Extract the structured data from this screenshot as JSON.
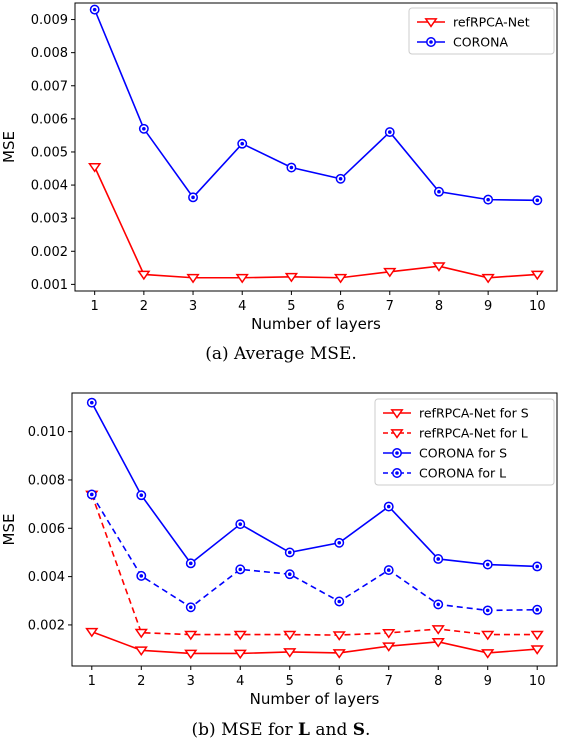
{
  "chart_data": [
    {
      "type": "line",
      "x": [
        1,
        2,
        3,
        4,
        5,
        6,
        7,
        8,
        9,
        10
      ],
      "xlabel": "Number of layers",
      "ylabel": "MSE",
      "xlim": [
        0.6,
        10.4
      ],
      "ylim": [
        0.0008,
        0.0095
      ],
      "yticks": [
        0.001,
        0.002,
        0.003,
        0.004,
        0.005,
        0.006,
        0.007,
        0.008,
        0.009
      ],
      "ytick_labels": [
        "0.001",
        "0.002",
        "0.003",
        "0.004",
        "0.005",
        "0.006",
        "0.007",
        "0.008",
        "0.009"
      ],
      "grid": false,
      "legend_position": "top-right",
      "series": [
        {
          "name": "refRPCA-Net",
          "color": "#ff0000",
          "marker": "triangle-down",
          "dash": "solid",
          "values": [
            0.00455,
            0.0013,
            0.0012,
            0.0012,
            0.00123,
            0.0012,
            0.00138,
            0.00155,
            0.0012,
            0.0013
          ]
        },
        {
          "name": "CORONA",
          "color": "#0000ff",
          "marker": "circle",
          "dash": "solid",
          "values": [
            0.0093,
            0.0057,
            0.00363,
            0.00525,
            0.00453,
            0.00419,
            0.0056,
            0.0038,
            0.00356,
            0.00354
          ]
        }
      ]
    },
    {
      "type": "line",
      "x": [
        1,
        2,
        3,
        4,
        5,
        6,
        7,
        8,
        9,
        10
      ],
      "xlabel": "Number of layers",
      "ylabel": "MSE",
      "xlim": [
        0.6,
        10.4
      ],
      "ylim": [
        0.0003,
        0.0116
      ],
      "yticks": [
        0.002,
        0.004,
        0.006,
        0.008,
        0.01
      ],
      "ytick_labels": [
        "0.002",
        "0.004",
        "0.006",
        "0.008",
        "0.010"
      ],
      "grid": false,
      "legend_position": "top-right",
      "series": [
        {
          "name": "refRPCA-Net for S",
          "color": "#ff0000",
          "marker": "triangle-down",
          "dash": "solid",
          "values": [
            0.00172,
            0.00095,
            0.00082,
            0.00082,
            0.00088,
            0.00084,
            0.00112,
            0.0013,
            0.00084,
            0.001
          ]
        },
        {
          "name": "refRPCA-Net for L",
          "color": "#ff0000",
          "marker": "triangle-down",
          "dash": "dashed",
          "values": [
            0.0074,
            0.00168,
            0.0016,
            0.0016,
            0.0016,
            0.00158,
            0.00167,
            0.00183,
            0.0016,
            0.0016
          ]
        },
        {
          "name": "CORONA for S",
          "color": "#0000ff",
          "marker": "circle",
          "dash": "solid",
          "values": [
            0.0112,
            0.00737,
            0.00455,
            0.00617,
            0.005,
            0.0054,
            0.0069,
            0.00473,
            0.0045,
            0.00442
          ]
        },
        {
          "name": "CORONA for L",
          "color": "#0000ff",
          "marker": "circle",
          "dash": "dashed",
          "values": [
            0.0074,
            0.00403,
            0.00273,
            0.0043,
            0.0041,
            0.00297,
            0.00427,
            0.00285,
            0.0026,
            0.00263
          ]
        }
      ]
    }
  ],
  "captions": {
    "a": "(a)  Average MSE.",
    "b_prefix": "(b)  MSE for ",
    "b_bold1": "L",
    "b_mid": " and ",
    "b_bold2": "S",
    "b_suffix": "."
  }
}
